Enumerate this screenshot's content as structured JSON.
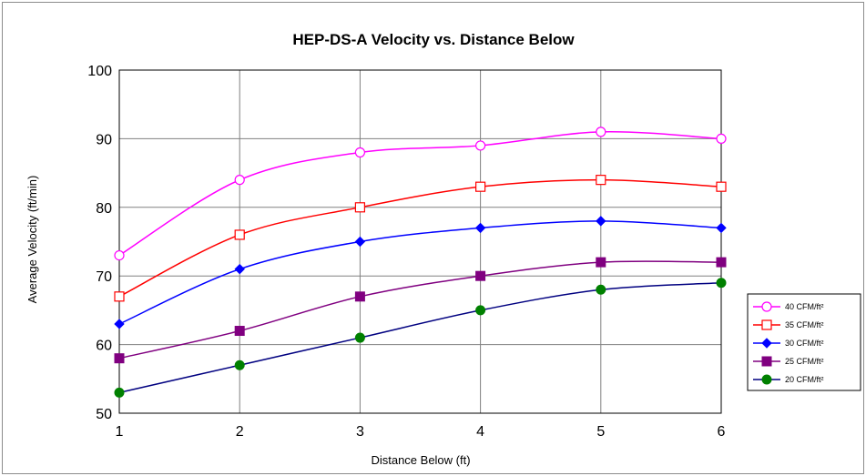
{
  "chart_data": {
    "type": "line",
    "title": "HEP-DS-A Velocity vs. Distance Below",
    "xlabel": "Distance Below (ft)",
    "ylabel": "Average Velocity (ft/min)",
    "x": [
      1,
      2,
      3,
      4,
      5,
      6
    ],
    "xlim": [
      1,
      6
    ],
    "ylim": [
      50,
      100
    ],
    "yticks": [
      50,
      60,
      70,
      80,
      90,
      100
    ],
    "xticks": [
      1,
      2,
      3,
      4,
      5,
      6
    ],
    "grid": true,
    "legend_position": "right",
    "series": [
      {
        "name": "40 CFM/ft²",
        "values": [
          73,
          84,
          88,
          89,
          91,
          90
        ],
        "color": "#ff00ff",
        "marker": "circle-open"
      },
      {
        "name": "35 CFM/ft²",
        "values": [
          67,
          76,
          80,
          83,
          84,
          83
        ],
        "color": "#ff0000",
        "marker": "square-open"
      },
      {
        "name": "30 CFM/ft²",
        "values": [
          63,
          71,
          75,
          77,
          78,
          77
        ],
        "color": "#0000ff",
        "marker": "diamond"
      },
      {
        "name": "25 CFM/ft²",
        "values": [
          58,
          62,
          67,
          70,
          72,
          72
        ],
        "color": "#800080",
        "marker": "square"
      },
      {
        "name": "20 CFM/ft²",
        "values": [
          53,
          57,
          61,
          65,
          68,
          69
        ],
        "color": "#000080",
        "marker": "circle",
        "marker_color": "#008000"
      }
    ]
  }
}
